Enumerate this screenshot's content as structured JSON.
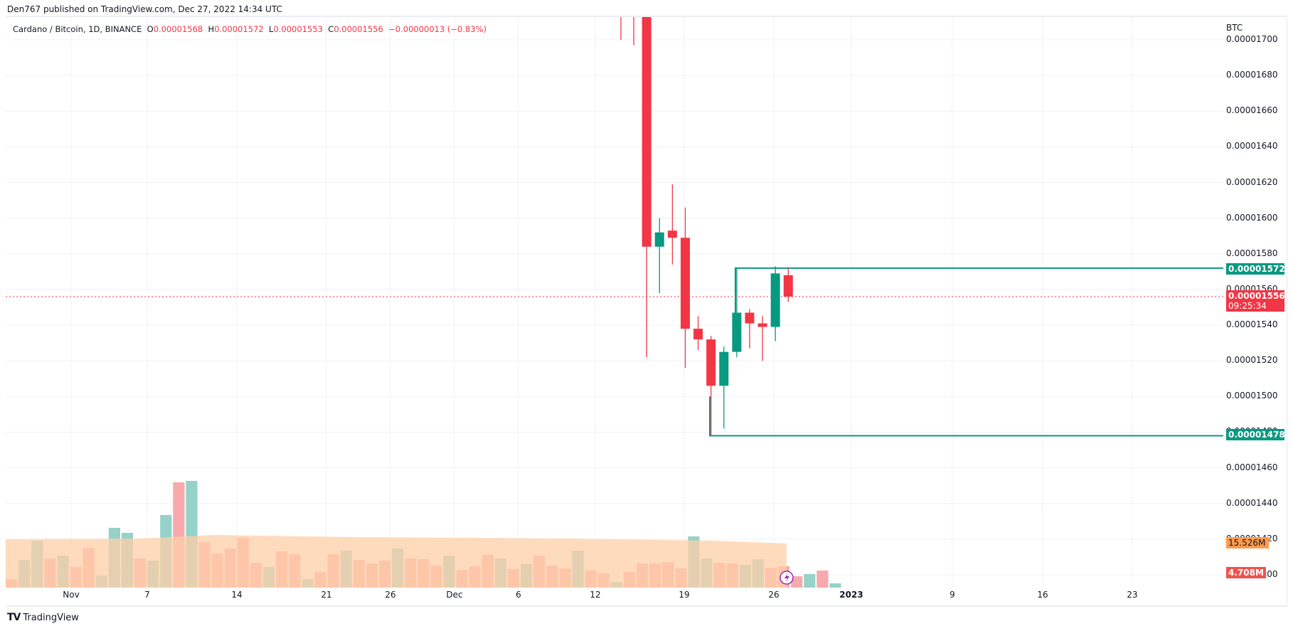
{
  "header": {
    "published": "Den767 published on TradingView.com, Dec 27, 2022 14:34 UTC"
  },
  "legend": {
    "symbol": "Cardano / Bitcoin, 1D, BINANCE",
    "open_label": "O",
    "open": "0.00001568",
    "high_label": "H",
    "high": "0.00001572",
    "low_label": "L",
    "low": "0.00001553",
    "close_label": "C",
    "close": "0.00001556",
    "change": "−0.00000013 (−0.83%)"
  },
  "price_axis": {
    "currency": "BTC",
    "ticks": [
      "0.00001700",
      "0.00001680",
      "0.00001660",
      "0.00001640",
      "0.00001620",
      "0.00001600",
      "0.00001580",
      "0.00001560",
      "0.00001540",
      "0.00001520",
      "0.00001500",
      "0.00001480",
      "0.00001460",
      "0.00001440",
      "0.00001420",
      "0.00001400"
    ],
    "resistance_tag": "0.00001572",
    "current_price_tag": "0.00001556",
    "countdown": "09:25:34",
    "support_tag": "0.00001478",
    "volume_ma_tag": "15.526M",
    "volume_tag": "4.708M"
  },
  "time_axis": {
    "labels": [
      "Nov",
      "7",
      "14",
      "21",
      "26",
      "Dec",
      "6",
      "12",
      "19",
      "26",
      "2023",
      "9",
      "16",
      "23"
    ]
  },
  "footer": {
    "brand": "TradingView"
  },
  "colors": {
    "up": "#089981",
    "down": "#f23645",
    "volume_up": "#8fd0c6",
    "volume_down": "#f5a5a8",
    "volume_ma": "#ffcfa8",
    "volume_ma_tag": "#ff9a4d",
    "level_line": "#089981"
  },
  "chart_data": {
    "type": "candlestick",
    "title": "Cardano / Bitcoin, 1D, BINANCE",
    "ylabel": "BTC",
    "ylim": [
      1.395e-05,
      1.705e-05
    ],
    "grid": true,
    "x_tick_labels": [
      "Nov",
      "7",
      "14",
      "21",
      "26",
      "Dec",
      "6",
      "12",
      "19",
      "26",
      "2023",
      "9",
      "16",
      "23"
    ],
    "candles": [
      {
        "date": "Dec 14",
        "open": 1.72e-05,
        "high": 1.74e-05,
        "low": 1.7e-05,
        "close": 1.715e-05
      },
      {
        "date": "Dec 15",
        "open": 1.73e-05,
        "high": 1.76e-05,
        "low": 1.697e-05,
        "close": 1.72e-05
      },
      {
        "date": "Dec 16",
        "open": 1.76e-05,
        "high": 1.78e-05,
        "low": 1.522e-05,
        "close": 1.584e-05
      },
      {
        "date": "Dec 17",
        "open": 1.584e-05,
        "high": 1.6e-05,
        "low": 1.558e-05,
        "close": 1.592e-05
      },
      {
        "date": "Dec 18",
        "open": 1.593e-05,
        "high": 1.619e-05,
        "low": 1.574e-05,
        "close": 1.589e-05
      },
      {
        "date": "Dec 19",
        "open": 1.589e-05,
        "high": 1.606e-05,
        "low": 1.516e-05,
        "close": 1.538e-05
      },
      {
        "date": "Dec 20",
        "open": 1.538e-05,
        "high": 1.545e-05,
        "low": 1.526e-05,
        "close": 1.532e-05
      },
      {
        "date": "Dec 21",
        "open": 1.532e-05,
        "high": 1.534e-05,
        "low": 1.478e-05,
        "close": 1.506e-05
      },
      {
        "date": "Dec 22",
        "open": 1.506e-05,
        "high": 1.528e-05,
        "low": 1.482e-05,
        "close": 1.525e-05
      },
      {
        "date": "Dec 23",
        "open": 1.525e-05,
        "high": 1.572e-05,
        "low": 1.522e-05,
        "close": 1.547e-05
      },
      {
        "date": "Dec 24",
        "open": 1.547e-05,
        "high": 1.549e-05,
        "low": 1.527e-05,
        "close": 1.541e-05
      },
      {
        "date": "Dec 25",
        "open": 1.541e-05,
        "high": 1.545e-05,
        "low": 1.52e-05,
        "close": 1.539e-05
      },
      {
        "date": "Dec 26",
        "open": 1.539e-05,
        "high": 1.573e-05,
        "low": 1.531e-05,
        "close": 1.569e-05
      },
      {
        "date": "Dec 27",
        "open": 1.568e-05,
        "high": 1.572e-05,
        "low": 1.553e-05,
        "close": 1.556e-05
      }
    ],
    "horizontal_levels": [
      {
        "price": 1.572e-05,
        "label": "resistance",
        "from": "Dec 23"
      },
      {
        "price": 1.478e-05,
        "label": "support",
        "from": "Dec 21"
      }
    ],
    "current_price": 1.556e-05,
    "volume": {
      "latest": "4.708M",
      "ma": "15.526M",
      "bars_relative": [
        0.12,
        0.39,
        0.66,
        0.41,
        0.45,
        0.29,
        0.56,
        0.17,
        0.84,
        0.77,
        0.41,
        0.38,
        1.02,
        1.48,
        1.5,
        0.64,
        0.48,
        0.55,
        0.7,
        0.35,
        0.29,
        0.51,
        0.47,
        0.12,
        0.22,
        0.47,
        0.52,
        0.39,
        0.34,
        0.38,
        0.55,
        0.41,
        0.4,
        0.31,
        0.45,
        0.25,
        0.3,
        0.46,
        0.41,
        0.26,
        0.33,
        0.45,
        0.31,
        0.27,
        0.52,
        0.24,
        0.2,
        0.08,
        0.22,
        0.34,
        0.34,
        0.36,
        0.27,
        0.72,
        0.41,
        0.35,
        0.34,
        0.32,
        0.4,
        0.28,
        0.3,
        0.16,
        0.19,
        0.24,
        0.06
      ]
    }
  }
}
